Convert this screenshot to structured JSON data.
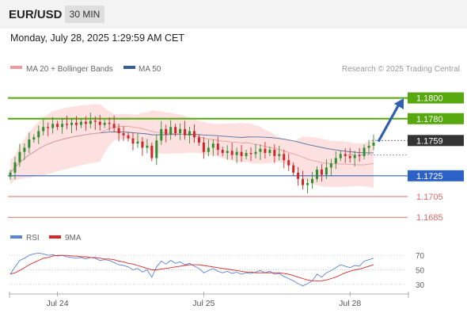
{
  "header": {
    "pair": "EUR/USD",
    "timeframe": "30 MIN"
  },
  "datetime": "Monday, July 28, 2025 1:29:59 AM CET",
  "legend": {
    "ma20": "MA 20 + Bollinger Bands",
    "ma50": "MA 50",
    "credit": "Research © 2025 Trading Central"
  },
  "rsi_legend": {
    "rsi": "RSI",
    "ma9": "9MA"
  },
  "colors": {
    "up": "#2f8f2f",
    "down": "#d22626",
    "resistance": "#57a80f",
    "support": "#2c62c8",
    "lower_target": "#e06a6a",
    "ma50": "#3a5c96",
    "ma20": "#e8a0a0",
    "bands": "#fde0e0",
    "arrow": "#2f5fb0",
    "rsi": "#5b82d9",
    "rsi_ma": "#d62828",
    "current": "#333333"
  },
  "chart_data": [
    {
      "type": "candlestick",
      "title": "EUR/USD",
      "ylim": [
        1.1676,
        1.1818
      ],
      "x_ticks": [
        {
          "index": 10,
          "label": "Jul 24"
        },
        {
          "index": 41,
          "label": "Jul 25"
        },
        {
          "index": 72,
          "label": "Jul 28"
        }
      ],
      "price_levels": [
        {
          "value": 1.18,
          "label": "1.1800",
          "kind": "resistance"
        },
        {
          "value": 1.178,
          "label": "1.1780",
          "kind": "resistance"
        },
        {
          "value": 1.1759,
          "label": "1.1759",
          "kind": "current"
        },
        {
          "value": 1.1725,
          "label": "1.1725",
          "kind": "support"
        },
        {
          "value": 1.1705,
          "label": "1.1705",
          "kind": "lower_target"
        },
        {
          "value": 1.1685,
          "label": "1.1685",
          "kind": "lower_target"
        }
      ],
      "forecast_arrow": {
        "from": 1.1758,
        "to": 1.1797
      },
      "series_close": [
        1.1728,
        1.1738,
        1.1748,
        1.1752,
        1.176,
        1.1762,
        1.1768,
        1.1772,
        1.1771,
        1.1775,
        1.1772,
        1.1775,
        1.1774,
        1.1776,
        1.1774,
        1.1777,
        1.1775,
        1.1778,
        1.1777,
        1.1774,
        1.1776,
        1.1775,
        1.1771,
        1.1766,
        1.1764,
        1.1761,
        1.1756,
        1.1758,
        1.1752,
        1.1754,
        1.1742,
        1.1759,
        1.177,
        1.1765,
        1.1772,
        1.1766,
        1.177,
        1.1764,
        1.1768,
        1.1762,
        1.1757,
        1.1748,
        1.1752,
        1.1756,
        1.175,
        1.1747,
        1.1749,
        1.1745,
        1.1748,
        1.1744,
        1.1747,
        1.1746,
        1.1748,
        1.1751,
        1.1747,
        1.175,
        1.1744,
        1.1746,
        1.174,
        1.1735,
        1.1728,
        1.1722,
        1.1716,
        1.1718,
        1.1722,
        1.1731,
        1.1726,
        1.1733,
        1.1737,
        1.1742,
        1.1746,
        1.1744,
        1.1742,
        1.1745,
        1.1744,
        1.1752,
        1.1754,
        1.1757
      ]
    },
    {
      "type": "line",
      "title": "RSI",
      "ylim": [
        20,
        80
      ],
      "y_ticks": [
        70,
        50,
        30
      ],
      "series": [
        {
          "name": "RSI",
          "values": [
            44,
            54,
            63,
            66,
            70,
            72,
            73,
            72,
            70,
            71,
            69,
            70,
            68,
            67,
            66,
            67,
            65,
            67,
            66,
            63,
            64,
            63,
            60,
            57,
            56,
            54,
            50,
            52,
            47,
            50,
            40,
            54,
            62,
            58,
            63,
            59,
            61,
            57,
            59,
            55,
            52,
            46,
            49,
            52,
            48,
            46,
            48,
            45,
            47,
            44,
            46,
            45,
            47,
            49,
            46,
            48,
            44,
            45,
            41,
            38,
            35,
            31,
            28,
            31,
            35,
            44,
            40,
            46,
            49,
            53,
            57,
            55,
            53,
            56,
            55,
            62,
            64,
            66
          ]
        },
        {
          "name": "9MA",
          "values": [
            44,
            46,
            49,
            53,
            57,
            60,
            63,
            66,
            67,
            69,
            70,
            70,
            70,
            69,
            69,
            68,
            68,
            67,
            67,
            66,
            65,
            65,
            64,
            62,
            61,
            59,
            58,
            56,
            54,
            52,
            50,
            50,
            51,
            52,
            53,
            54,
            55,
            56,
            57,
            57,
            57,
            56,
            55,
            54,
            53,
            52,
            51,
            50,
            49,
            48,
            47,
            47,
            46,
            46,
            46,
            46,
            46,
            46,
            45,
            44,
            42,
            40,
            38,
            36,
            35,
            35,
            35,
            36,
            38,
            40,
            43,
            46,
            48,
            50,
            51,
            53,
            55,
            57
          ]
        }
      ]
    }
  ]
}
